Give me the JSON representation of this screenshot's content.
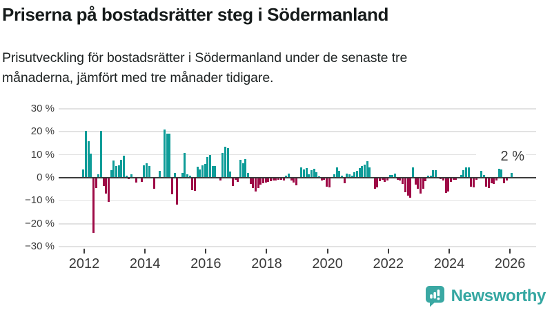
{
  "header": {
    "title": "Priserna på bostadsrätter steg i Södermanland",
    "subtitle_lines": [
      "Prisutveckling för bostadsrätter i Södermanland under de senaste tre",
      "månaderna, jämfört med tre månader tidigare."
    ]
  },
  "footer": {
    "brand": "Newsworthy"
  },
  "chart_data": {
    "type": "bar",
    "title": "Prisutveckling för bostadsrätter i Södermanland, tre månader jämfört med tre månader tidigare",
    "unit": "%",
    "frequency": "monthly",
    "start_month": "2012-01",
    "end_month": "2026-02",
    "grid": true,
    "ylim": [
      -30,
      30
    ],
    "y_ticks": [
      30,
      20,
      10,
      0,
      -10,
      -20,
      -30
    ],
    "y_tick_labels": [
      "30 %",
      "20 %",
      "10 %",
      "0 %",
      "−10 %",
      "−20 %",
      "−30 %"
    ],
    "x_tick_years": [
      2012,
      2014,
      2016,
      2018,
      2020,
      2022,
      2024,
      2026
    ],
    "last_value_label": "2 %",
    "last_value": 2,
    "colors": {
      "positive": "#0e9c98",
      "negative": "#9e0a46"
    },
    "values": [
      3.5,
      20.5,
      16,
      10.5,
      -24,
      -4.5,
      1.5,
      20.5,
      -3.5,
      -7,
      -10.5,
      3.3,
      7.6,
      5,
      5.3,
      7.9,
      9.7,
      0.8,
      -0.7,
      1.5,
      0,
      -2.2,
      0,
      -1.8,
      5.5,
      6.3,
      5.2,
      0,
      -4.8,
      0,
      2.9,
      0,
      21,
      19.3,
      19.3,
      -7.3,
      2.1,
      -11.8,
      0,
      2.2,
      10.9,
      1.5,
      0.8,
      -5.5,
      -5.8,
      4.7,
      3.7,
      5.4,
      6,
      8.9,
      10,
      5,
      5.2,
      0,
      -1.2,
      10.8,
      13.4,
      13,
      2.8,
      -3.5,
      -1,
      -1.8,
      7.9,
      6.3,
      8.1,
      2,
      -2.7,
      -4.5,
      -6,
      -4.6,
      -3,
      -2.4,
      -2,
      -1.7,
      -1.5,
      -1.3,
      -1.2,
      -0.9,
      -0.9,
      -1.2,
      1,
      1.7,
      -1.2,
      -2.2,
      -3.3,
      0,
      4.4,
      3.5,
      4.2,
      1.5,
      3.2,
      3.9,
      2.5,
      0.7,
      -1.3,
      -1,
      -3.8,
      -4.3,
      0,
      1.5,
      4.5,
      3,
      1,
      -2.5,
      1.9,
      1.4,
      0.9,
      2.5,
      3,
      4.2,
      5,
      5.7,
      7.3,
      4.6,
      0,
      -4.8,
      -4.3,
      -1.5,
      -0.9,
      -1.7,
      -1.2,
      1.3,
      1.2,
      1.7,
      -1,
      -1.3,
      -2.8,
      -6.2,
      -7.8,
      -8.7,
      4.4,
      -3,
      -4.7,
      -6.9,
      -4.8,
      -1.5,
      0.8,
      1,
      3.4,
      3.4,
      0,
      -0.7,
      -1.1,
      -6.6,
      -6,
      -1.7,
      -1,
      -0.9,
      0,
      1.2,
      3.3,
      4.5,
      4.5,
      -3.8,
      -4.2,
      -1,
      0,
      2.9,
      1.1,
      -3.9,
      -4.4,
      -2.3,
      -2.6,
      -1.1,
      4,
      3.6,
      -2.4,
      -1.3,
      null,
      2
    ]
  },
  "layout_colors": {
    "gridline": "#e2e2e2",
    "axis": "#3b3b3b",
    "text": "#3c3c3c",
    "logo_teal": "#35a7a2"
  }
}
